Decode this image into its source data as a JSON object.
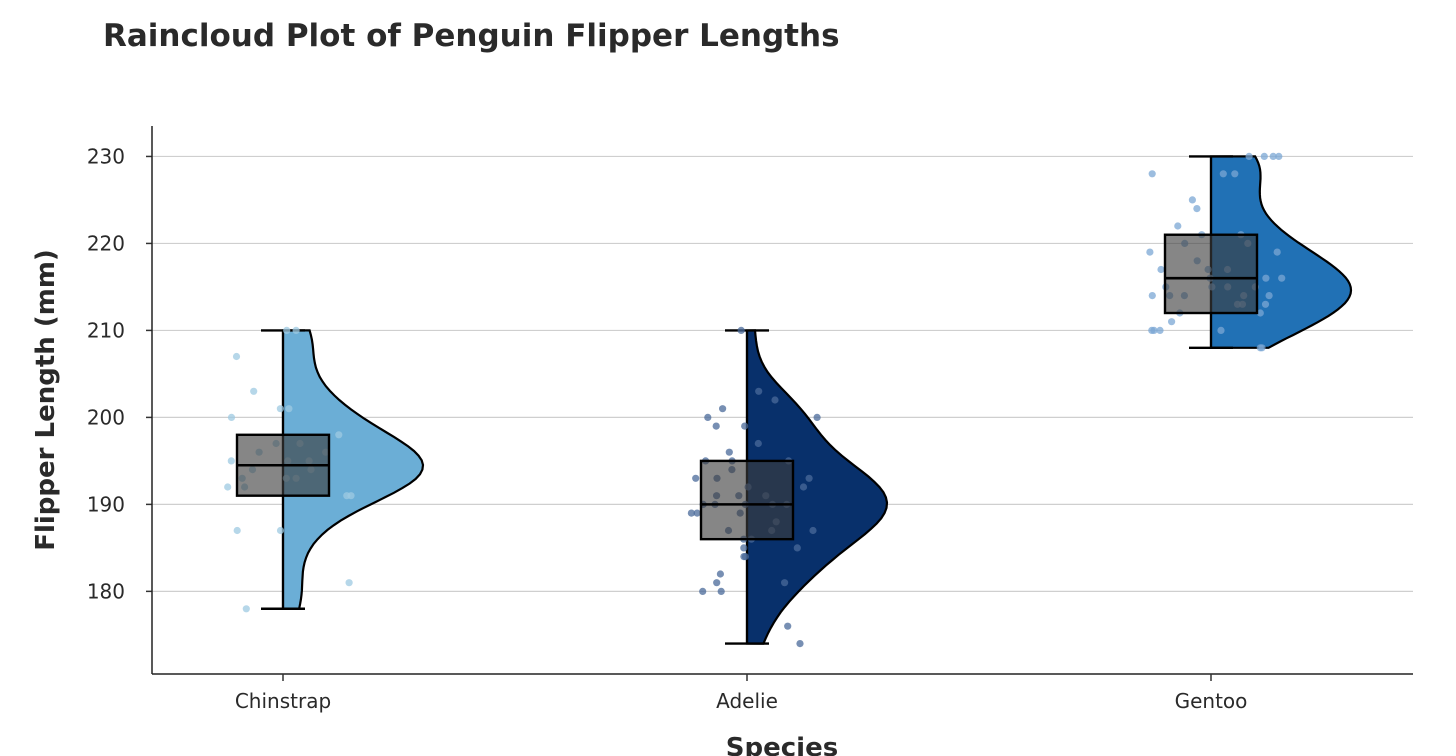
{
  "chart_data": {
    "type": "raincloud",
    "title": "Raincloud Plot of Penguin Flipper Lengths",
    "xlabel": "Species",
    "ylabel": "Flipper Length (mm)",
    "categories": [
      "Chinstrap",
      "Adelie",
      "Gentoo"
    ],
    "ylim": [
      170.5,
      233.5
    ],
    "yticks": [
      180,
      190,
      200,
      210,
      220,
      230
    ],
    "grid": true,
    "series": [
      {
        "name": "Chinstrap",
        "color": "#6baed6",
        "point_color": "#9ecae1",
        "min": 178,
        "q1": 191,
        "median": 194.5,
        "q3": 198,
        "max": 210,
        "density_peak": 194,
        "points": [
          210,
          210,
          207,
          203,
          201,
          201,
          200,
          198,
          197,
          197,
          196,
          196,
          195,
          195,
          195,
          194,
          194,
          193,
          193,
          193,
          192,
          192,
          191,
          191,
          187,
          187,
          181,
          178
        ]
      },
      {
        "name": "Adelie",
        "color": "#08306b",
        "point_color": "#4a6a9a",
        "min": 174,
        "q1": 186,
        "median": 190,
        "q3": 195,
        "max": 210,
        "density_peak": 190,
        "points": [
          210,
          203,
          202,
          201,
          200,
          200,
          199,
          199,
          197,
          196,
          195,
          195,
          195,
          194,
          193,
          193,
          193,
          192,
          192,
          191,
          191,
          191,
          190,
          190,
          190,
          190,
          190,
          189,
          189,
          189,
          188,
          187,
          187,
          187,
          186,
          186,
          185,
          185,
          184,
          184,
          182,
          181,
          181,
          180,
          180,
          176,
          174
        ]
      },
      {
        "name": "Gentoo",
        "color": "#2171b5",
        "point_color": "#7ba7d4",
        "min": 208,
        "q1": 212,
        "median": 216,
        "q3": 221,
        "max": 230,
        "density_peak": 214,
        "points": [
          230,
          230,
          230,
          230,
          228,
          228,
          228,
          225,
          224,
          222,
          221,
          221,
          220,
          220,
          219,
          219,
          218,
          217,
          217,
          217,
          216,
          216,
          216,
          215,
          215,
          215,
          215,
          214,
          214,
          214,
          214,
          214,
          213,
          213,
          213,
          212,
          212,
          211,
          210,
          210,
          210,
          210,
          208,
          208
        ]
      }
    ]
  }
}
